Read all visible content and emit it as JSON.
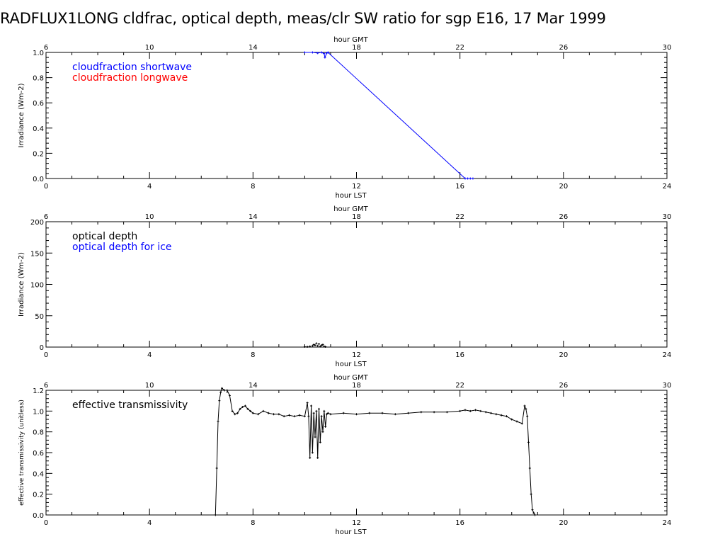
{
  "title": "RADFLUX1LONG cldfrac, optical depth, meas/clr SW ratio for sgp E16, 17 Mar 1999",
  "chart_data": [
    {
      "type": "line",
      "xlabel": "hour LST",
      "x2label": "hour GMT",
      "ylabel": "Irradiance (Wm-2)",
      "xlim": [
        0,
        24
      ],
      "x2lim": [
        6,
        30
      ],
      "ylim": [
        0,
        1
      ],
      "xticks": [
        "0",
        "4",
        "8",
        "12",
        "16",
        "20",
        "24"
      ],
      "x2ticks": [
        "6",
        "10",
        "14",
        "18",
        "22",
        "26",
        "30"
      ],
      "yticks": [
        "0.0",
        "0.2",
        "0.4",
        "0.6",
        "0.8",
        "1.0"
      ],
      "legend": [
        {
          "label": "cloudfraction shortwave",
          "color": "#0000ff"
        },
        {
          "label": "cloudfraction longwave",
          "color": "#ff0000"
        }
      ],
      "series": [
        {
          "name": "cloudfraction shortwave",
          "color": "#0000ff",
          "x": [
            10.0,
            10.3,
            10.5,
            10.65,
            10.75,
            10.78,
            10.85,
            10.9,
            16.2,
            16.3,
            16.4,
            16.5
          ],
          "y": [
            1.0,
            1.0,
            0.995,
            1.0,
            0.99,
            0.96,
            0.995,
            1.0,
            0.0,
            0.0,
            0.0,
            0.0
          ]
        }
      ]
    },
    {
      "type": "scatter",
      "xlabel": "hour LST",
      "x2label": "hour GMT",
      "ylabel": "Irradiance (Wm-2)",
      "xlim": [
        0,
        24
      ],
      "x2lim": [
        6,
        30
      ],
      "ylim": [
        0,
        200
      ],
      "xticks": [
        "0",
        "4",
        "8",
        "12",
        "16",
        "20",
        "24"
      ],
      "x2ticks": [
        "6",
        "10",
        "14",
        "18",
        "22",
        "26",
        "30"
      ],
      "yticks": [
        "0",
        "50",
        "100",
        "150",
        "200"
      ],
      "legend": [
        {
          "label": "optical depth",
          "color": "#000000"
        },
        {
          "label": "optical depth for ice",
          "color": "#0000ff"
        }
      ],
      "series": [
        {
          "name": "optical depth",
          "color": "#000000",
          "x": [
            10.0,
            10.1,
            10.2,
            10.3,
            10.35,
            10.4,
            10.45,
            10.5,
            10.55,
            10.6,
            10.65,
            10.7,
            10.75,
            10.8
          ],
          "y": [
            0.5,
            0.5,
            1,
            2,
            4,
            3,
            6,
            2,
            5,
            1,
            3,
            4,
            1,
            0.5
          ]
        }
      ]
    },
    {
      "type": "line",
      "xlabel": "hour LST",
      "x2label": "hour GMT",
      "ylabel": "effective transmissivity (unitless)",
      "xlim": [
        0,
        24
      ],
      "x2lim": [
        6,
        30
      ],
      "ylim": [
        0,
        1.2
      ],
      "xticks": [
        "0",
        "4",
        "8",
        "12",
        "16",
        "20",
        "24"
      ],
      "x2ticks": [
        "6",
        "10",
        "14",
        "18",
        "22",
        "26",
        "30"
      ],
      "yticks": [
        "0.0",
        "0.2",
        "0.4",
        "0.6",
        "0.8",
        "1.0",
        "1.2"
      ],
      "legend": [
        {
          "label": "effective transmissivity",
          "color": "#000000"
        }
      ],
      "series": [
        {
          "name": "effective transmissivity",
          "color": "#000000",
          "x": [
            6.55,
            6.6,
            6.65,
            6.7,
            6.75,
            6.8,
            6.9,
            7.0,
            7.1,
            7.2,
            7.3,
            7.4,
            7.5,
            7.6,
            7.7,
            7.8,
            7.9,
            8.0,
            8.2,
            8.4,
            8.6,
            8.8,
            9.0,
            9.2,
            9.4,
            9.6,
            9.8,
            10.0,
            10.1,
            10.15,
            10.2,
            10.25,
            10.3,
            10.35,
            10.4,
            10.45,
            10.5,
            10.55,
            10.6,
            10.65,
            10.7,
            10.75,
            10.8,
            10.85,
            10.9,
            11.0,
            11.5,
            12.0,
            12.5,
            13.0,
            13.5,
            14.0,
            14.5,
            15.0,
            15.5,
            16.0,
            16.2,
            16.4,
            16.6,
            16.8,
            17.0,
            17.2,
            17.4,
            17.6,
            17.8,
            18.0,
            18.2,
            18.4,
            18.5,
            18.55,
            18.6,
            18.65,
            18.7,
            18.75,
            18.8,
            18.85,
            18.9
          ],
          "y": [
            0.0,
            0.45,
            0.9,
            1.1,
            1.18,
            1.22,
            1.2,
            1.2,
            1.15,
            1.0,
            0.97,
            0.98,
            1.02,
            1.04,
            1.05,
            1.02,
            1.0,
            0.98,
            0.97,
            1.0,
            0.98,
            0.97,
            0.97,
            0.95,
            0.96,
            0.95,
            0.96,
            0.95,
            1.08,
            0.95,
            0.55,
            1.05,
            0.6,
            0.98,
            0.75,
            1.0,
            0.55,
            1.02,
            0.7,
            0.95,
            0.8,
            1.0,
            0.85,
            0.97,
            0.98,
            0.97,
            0.98,
            0.97,
            0.98,
            0.98,
            0.97,
            0.98,
            0.99,
            0.99,
            0.99,
            1.0,
            1.01,
            1.0,
            1.01,
            1.0,
            0.99,
            0.98,
            0.97,
            0.96,
            0.95,
            0.92,
            0.9,
            0.88,
            1.05,
            1.02,
            0.95,
            0.7,
            0.45,
            0.2,
            0.05,
            0.02,
            0.0
          ]
        }
      ]
    }
  ]
}
